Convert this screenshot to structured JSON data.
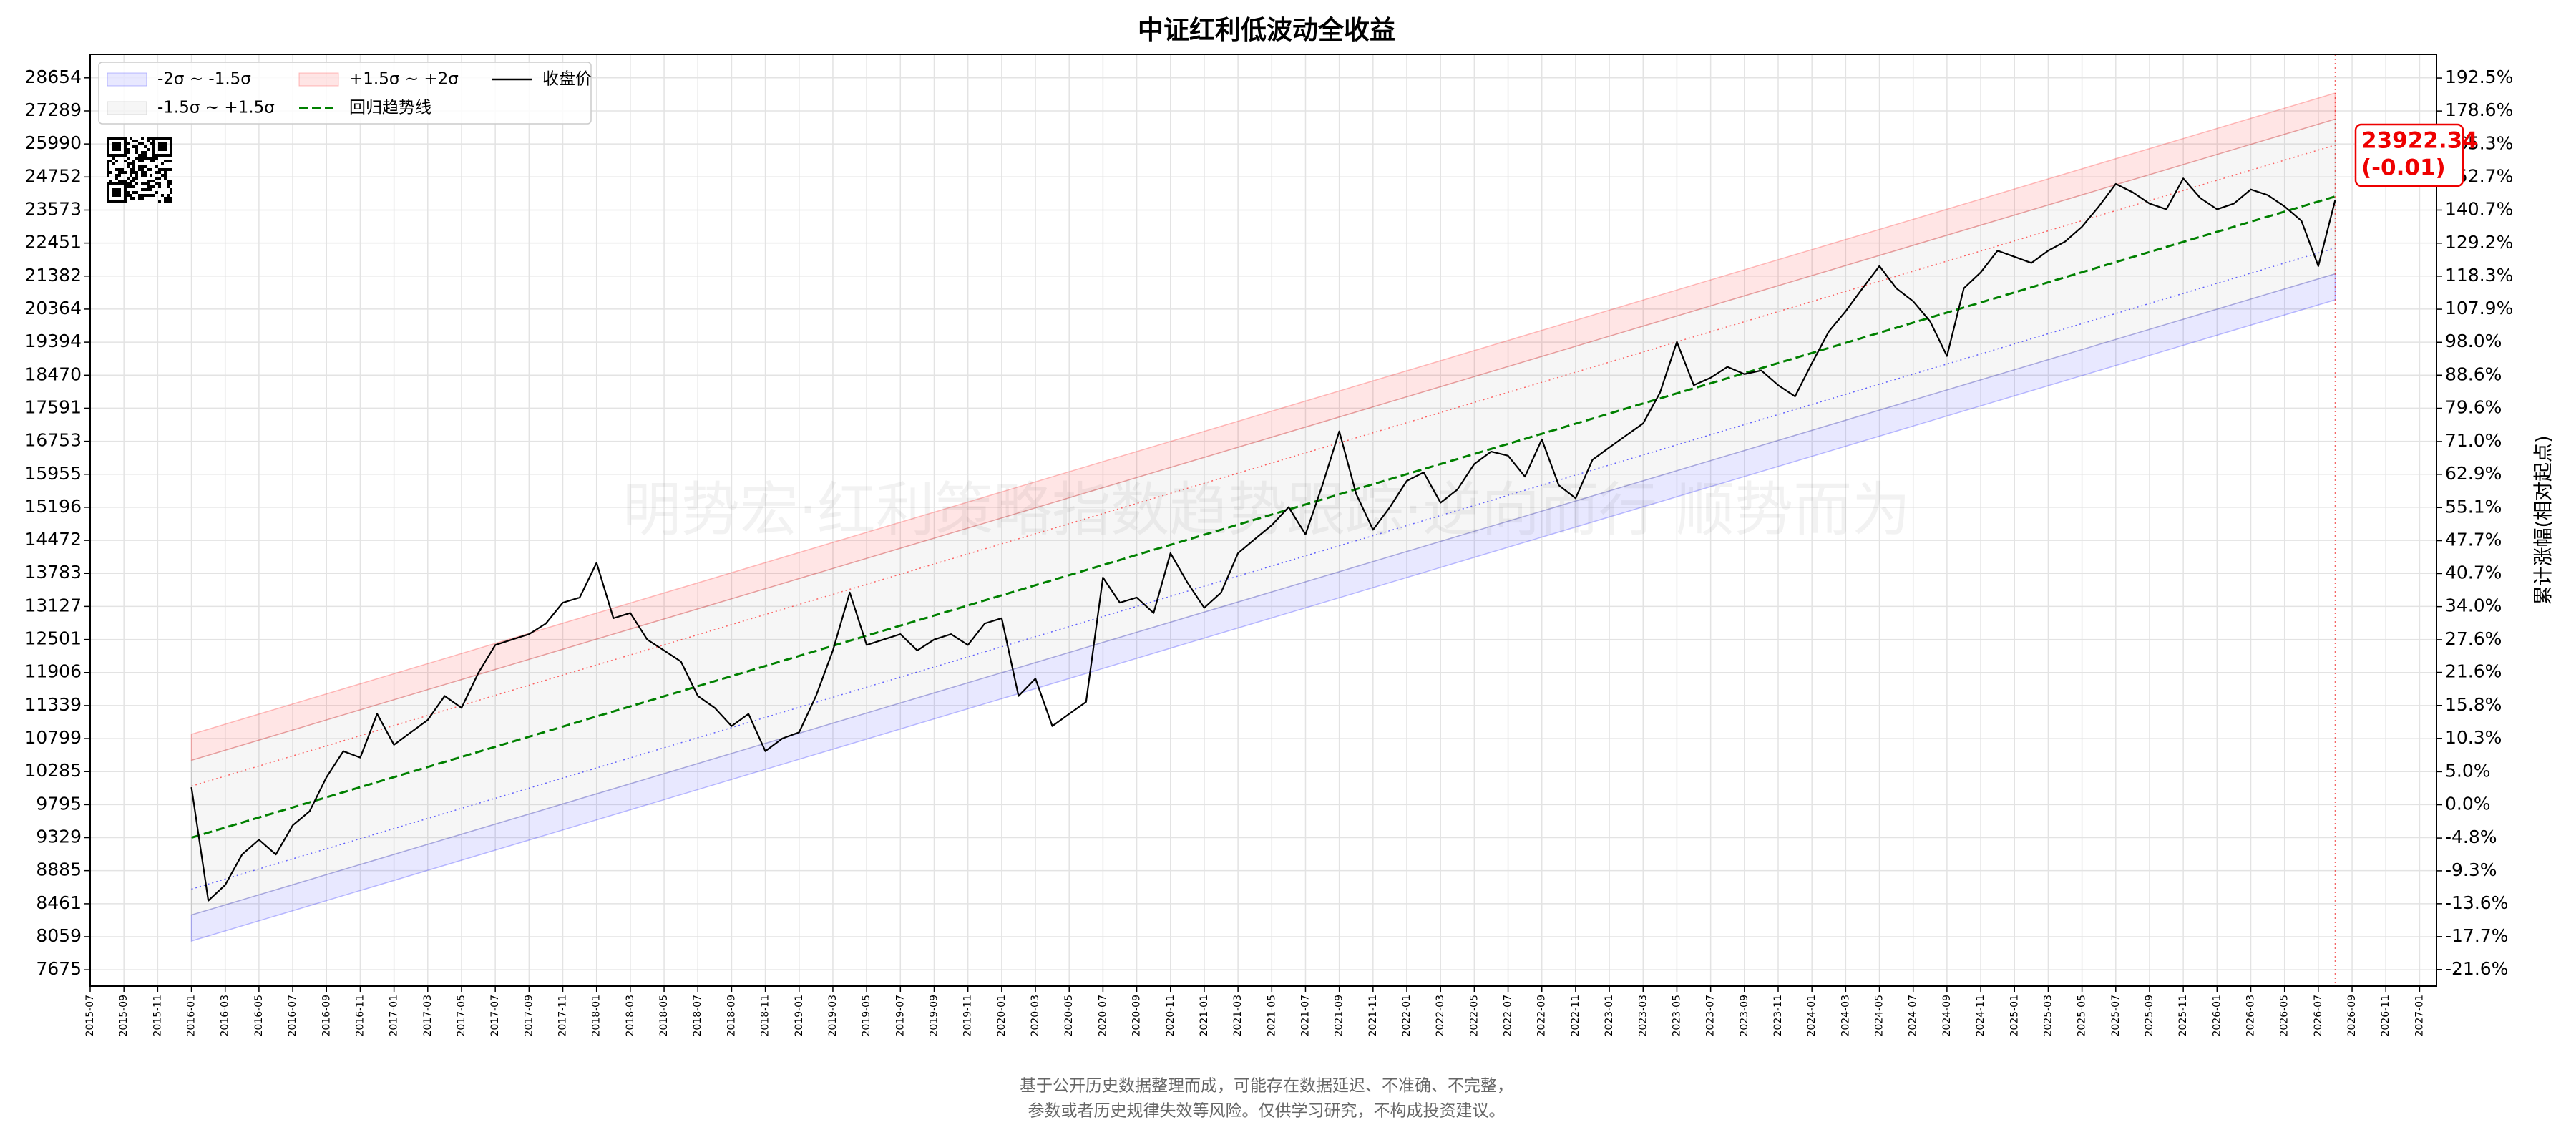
{
  "chart_data": {
    "type": "line",
    "title": "中证红利低波动全收益",
    "y2_label": "累计涨幅(相对起点)",
    "watermark": "明势宏·红利策略指数趋势跟踪·逆向而行 顺势而为",
    "footnote": [
      "基于公开历史数据整理而成，可能存在数据延迟、不准确、不完整，",
      "参数或者历史规律失效等风险。仅供学习研究，不构成投资建议。"
    ],
    "annotation": [
      "23922.34",
      "(-0.01)"
    ],
    "yscale": "log",
    "y2_scale": "log1p",
    "grid": true,
    "legend": "upper left",
    "xlim": [
      "2015-07",
      "2027-02"
    ],
    "xticks": [
      "2015-07",
      "2015-09",
      "2015-11",
      "2016-01",
      "2016-03",
      "2016-05",
      "2016-07",
      "2016-09",
      "2016-11",
      "2017-01",
      "2017-03",
      "2017-05",
      "2017-07",
      "2017-09",
      "2017-11",
      "2018-01",
      "2018-03",
      "2018-05",
      "2018-07",
      "2018-09",
      "2018-11",
      "2019-01",
      "2019-03",
      "2019-05",
      "2019-07",
      "2019-09",
      "2019-11",
      "2020-01",
      "2020-03",
      "2020-05",
      "2020-07",
      "2020-09",
      "2020-11",
      "2021-01",
      "2021-03",
      "2021-05",
      "2021-07",
      "2021-09",
      "2021-11",
      "2022-01",
      "2022-03",
      "2022-05",
      "2022-07",
      "2022-09",
      "2022-11",
      "2023-01",
      "2023-03",
      "2023-05",
      "2023-07",
      "2023-09",
      "2023-11",
      "2024-01",
      "2024-03",
      "2024-05",
      "2024-07",
      "2024-09",
      "2024-11",
      "2025-01",
      "2025-03",
      "2025-05",
      "2025-07",
      "2025-09",
      "2025-11",
      "2026-01",
      "2026-03",
      "2026-05",
      "2026-07",
      "2026-09",
      "2026-11",
      "2027-01"
    ],
    "ylim": [
      7492,
      29665
    ],
    "yticks": [
      7675,
      8059,
      8461,
      8885,
      9329,
      9795,
      10285,
      10799,
      11339,
      11906,
      12501,
      13127,
      13783,
      14472,
      15196,
      15955,
      16753,
      17591,
      18470,
      19394,
      20364,
      21382,
      22451,
      23573,
      24752,
      25990,
      27289,
      28654
    ],
    "y2lim": [
      -23.5,
      202.9
    ],
    "y2ticks": [
      {
        "value": -21.6,
        "label": "-21.6%"
      },
      {
        "value": -17.7,
        "label": "-17.7%"
      },
      {
        "value": -13.6,
        "label": "-13.6%"
      },
      {
        "value": -9.3,
        "label": "-9.3%"
      },
      {
        "value": -4.8,
        "label": "-4.8%"
      },
      {
        "value": 0,
        "label": "0.0%"
      },
      {
        "value": 5,
        "label": "5.0%"
      },
      {
        "value": 10.3,
        "label": "10.3%"
      },
      {
        "value": 15.8,
        "label": "15.8%"
      },
      {
        "value": 21.6,
        "label": "21.6%"
      },
      {
        "value": 27.6,
        "label": "27.6%"
      },
      {
        "value": 34,
        "label": "34.0%"
      },
      {
        "value": 40.7,
        "label": "40.7%"
      },
      {
        "value": 47.7,
        "label": "47.7%"
      },
      {
        "value": 55.1,
        "label": "55.1%"
      },
      {
        "value": 62.9,
        "label": "62.9%"
      },
      {
        "value": 71,
        "label": "71.0%"
      },
      {
        "value": 79.6,
        "label": "79.6%"
      },
      {
        "value": 88.6,
        "label": "88.6%"
      },
      {
        "value": 98,
        "label": "98.0%"
      },
      {
        "value": 107.9,
        "label": "107.9%"
      },
      {
        "value": 118.3,
        "label": "118.3%"
      },
      {
        "value": 129.2,
        "label": "129.2%"
      },
      {
        "value": 140.7,
        "label": "140.7%"
      },
      {
        "value": 152.7,
        "label": "152.7%"
      },
      {
        "value": 165.3,
        "label": "165.3%"
      },
      {
        "value": 178.6,
        "label": "178.6%"
      },
      {
        "value": 192.5,
        "label": "192.5%"
      }
    ],
    "bands": [
      {
        "name": "-2σ ~ -1.5σ",
        "color": "#0000ff",
        "opacity": 0.09,
        "x": [
          "2016-01",
          "2026-08"
        ],
        "lower": [
          8008,
          20644
        ],
        "upper": [
          8322,
          21454
        ]
      },
      {
        "name": "-1.5σ ~ +1.5σ",
        "color": "#808080",
        "opacity": 0.07,
        "x": [
          "2016-01",
          "2026-08"
        ],
        "lower": [
          8322,
          21454
        ],
        "upper": [
          10458,
          26960
        ]
      },
      {
        "name": "+1.5σ ~ +2σ",
        "color": "#ff0000",
        "opacity": 0.1,
        "x": [
          "2016-01",
          "2026-08"
        ],
        "lower": [
          10458,
          26960
        ],
        "upper": [
          10868,
          28018
        ]
      }
    ],
    "sigma_lines": [
      {
        "color": "#ff0000",
        "x": [
          "2016-01",
          "2026-08"
        ],
        "values": [
          10066,
          25950
        ]
      },
      {
        "color": "#0000ff",
        "x": [
          "2016-01",
          "2026-08"
        ],
        "values": [
          8646,
          22290
        ]
      }
    ],
    "trend": {
      "name": "回归趋势线",
      "color": "#008000",
      "x": [
        "2016-01",
        "2026-08"
      ],
      "values": [
        9329,
        24050
      ]
    },
    "x": [
      "2016-01",
      "2016-02",
      "2016-03",
      "2016-04",
      "2016-05",
      "2016-06",
      "2016-07",
      "2016-08",
      "2016-09",
      "2016-10",
      "2016-11",
      "2016-12",
      "2017-01",
      "2017-02",
      "2017-03",
      "2017-04",
      "2017-05",
      "2017-06",
      "2017-07",
      "2017-08",
      "2017-09",
      "2017-10",
      "2017-11",
      "2017-12",
      "2018-01",
      "2018-02",
      "2018-03",
      "2018-04",
      "2018-05",
      "2018-06",
      "2018-07",
      "2018-08",
      "2018-09",
      "2018-10",
      "2018-11",
      "2018-12",
      "2019-01",
      "2019-02",
      "2019-03",
      "2019-04",
      "2019-05",
      "2019-06",
      "2019-07",
      "2019-08",
      "2019-09",
      "2019-10",
      "2019-11",
      "2019-12",
      "2020-01",
      "2020-02",
      "2020-03",
      "2020-04",
      "2020-05",
      "2020-06",
      "2020-07",
      "2020-08",
      "2020-09",
      "2020-10",
      "2020-11",
      "2020-12",
      "2021-01",
      "2021-02",
      "2021-03",
      "2021-04",
      "2021-05",
      "2021-06",
      "2021-07",
      "2021-08",
      "2021-09",
      "2021-10",
      "2021-11",
      "2021-12",
      "2022-01",
      "2022-02",
      "2022-03",
      "2022-04",
      "2022-05",
      "2022-06",
      "2022-07",
      "2022-08",
      "2022-09",
      "2022-10",
      "2022-11",
      "2022-12",
      "2023-01",
      "2023-02",
      "2023-03",
      "2023-04",
      "2023-05",
      "2023-06",
      "2023-07",
      "2023-08",
      "2023-09",
      "2023-10",
      "2023-11",
      "2023-12",
      "2024-01",
      "2024-02",
      "2024-03",
      "2024-04",
      "2024-05",
      "2024-06",
      "2024-07",
      "2024-08",
      "2024-09",
      "2024-10",
      "2024-11",
      "2024-12",
      "2025-01",
      "2025-02",
      "2025-03",
      "2025-04",
      "2025-05",
      "2025-06",
      "2025-07",
      "2025-08",
      "2025-09",
      "2025-10",
      "2025-11",
      "2025-12",
      "2026-01",
      "2026-02",
      "2026-03",
      "2026-04",
      "2026-05",
      "2026-06",
      "2026-07",
      "2026-08"
    ],
    "series": [
      {
        "name": "收盘价",
        "color": "#000000",
        "values": [
          10050,
          8500,
          8700,
          9100,
          9300,
          9100,
          9500,
          9700,
          10200,
          10600,
          10500,
          11200,
          10700,
          10900,
          11100,
          11500,
          11300,
          11900,
          12400,
          12500,
          12600,
          12800,
          13200,
          13300,
          14000,
          12900,
          13000,
          12500,
          12300,
          12100,
          11500,
          11300,
          11000,
          11200,
          10600,
          10800,
          10900,
          11500,
          12300,
          13400,
          12400,
          12500,
          12600,
          12300,
          12500,
          12600,
          12400,
          12800,
          12900,
          11500,
          11800,
          11000,
          11200,
          11400,
          13700,
          13200,
          13300,
          13000,
          14200,
          13600,
          13100,
          13400,
          14200,
          14500,
          14800,
          15200,
          14600,
          15700,
          17000,
          15500,
          14700,
          15200,
          15800,
          16000,
          15300,
          15600,
          16200,
          16500,
          16400,
          15900,
          16800,
          15700,
          15400,
          16300,
          16600,
          16900,
          17200,
          18000,
          19400,
          18200,
          18400,
          18700,
          18500,
          18600,
          18200,
          17900,
          18800,
          19700,
          20300,
          21000,
          21700,
          21000,
          20600,
          20000,
          19000,
          21000,
          21500,
          22200,
          22000,
          21800,
          22200,
          22500,
          23000,
          23700,
          24500,
          24200,
          23800,
          23600,
          24700,
          24000,
          23600,
          23800,
          24300,
          24100,
          23700,
          23200,
          21700,
          23922.34
        ]
      }
    ]
  }
}
